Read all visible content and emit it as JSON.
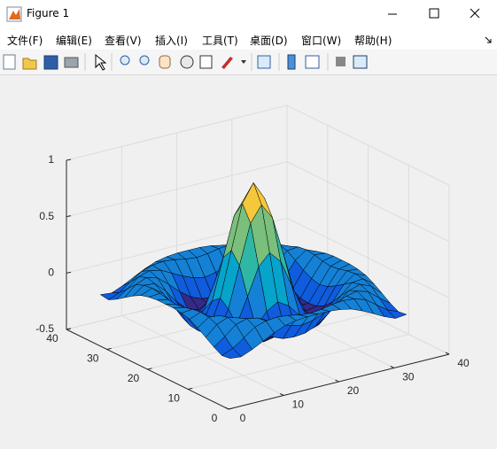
{
  "window": {
    "title": "Figure 1"
  },
  "menu": [
    "文件(F)",
    "编辑(E)",
    "查看(V)",
    "插入(I)",
    "工具(T)",
    "桌面(D)",
    "窗口(W)",
    "帮助(H)"
  ],
  "chart_data": {
    "type": "surface",
    "x": [
      1,
      3,
      5,
      7,
      9,
      11,
      13,
      15,
      17,
      19,
      21,
      23,
      25,
      27,
      29,
      31,
      33
    ],
    "y": [
      1,
      3,
      5,
      7,
      9,
      11,
      13,
      15,
      17,
      19,
      21,
      23,
      25,
      27,
      29,
      31,
      33
    ],
    "z": [
      [
        -0.08,
        -0.09,
        -0.05,
        0,
        0.05,
        0.09,
        0.11,
        0.12,
        0.12,
        0.12,
        0.11,
        0.09,
        0.05,
        0,
        -0.05,
        -0.09,
        -0.08
      ],
      [
        -0.09,
        -0.05,
        0.02,
        0.09,
        0.12,
        0.13,
        0.12,
        0.1,
        0.09,
        0.1,
        0.12,
        0.13,
        0.12,
        0.09,
        0.02,
        -0.05,
        -0.09
      ],
      [
        -0.05,
        0.02,
        0.1,
        0.13,
        0.11,
        0.06,
        0.01,
        -0.03,
        -0.05,
        -0.03,
        0.01,
        0.06,
        0.11,
        0.13,
        0.1,
        0.02,
        -0.05
      ],
      [
        0,
        0.09,
        0.13,
        0.1,
        0.02,
        -0.07,
        -0.14,
        -0.18,
        -0.19,
        -0.18,
        -0.14,
        -0.07,
        0.02,
        0.1,
        0.13,
        0.09,
        0
      ],
      [
        0.05,
        0.12,
        0.11,
        0.02,
        -0.1,
        -0.19,
        -0.22,
        -0.2,
        -0.19,
        -0.2,
        -0.22,
        -0.19,
        -0.1,
        0.02,
        0.11,
        0.12,
        0.05
      ],
      [
        0.09,
        0.13,
        0.06,
        -0.07,
        -0.19,
        -0.21,
        -0.12,
        -0.01,
        0.05,
        -0.01,
        -0.12,
        -0.21,
        -0.19,
        -0.07,
        0.06,
        0.13,
        0.09
      ],
      [
        0.11,
        0.12,
        0.01,
        -0.14,
        -0.22,
        -0.12,
        0.11,
        0.35,
        0.45,
        0.35,
        0.11,
        -0.12,
        -0.22,
        -0.14,
        0.01,
        0.12,
        0.11
      ],
      [
        0.12,
        0.1,
        -0.03,
        -0.18,
        -0.2,
        -0.01,
        0.35,
        0.7,
        0.84,
        0.7,
        0.35,
        -0.01,
        -0.2,
        -0.18,
        -0.03,
        0.1,
        0.12
      ],
      [
        0.12,
        0.09,
        -0.05,
        -0.19,
        -0.19,
        0.05,
        0.45,
        0.84,
        1,
        0.84,
        0.45,
        0.05,
        -0.19,
        -0.19,
        -0.05,
        0.09,
        0.12
      ],
      [
        0.12,
        0.1,
        -0.03,
        -0.18,
        -0.2,
        -0.01,
        0.35,
        0.7,
        0.84,
        0.7,
        0.35,
        -0.01,
        -0.2,
        -0.18,
        -0.03,
        0.1,
        0.12
      ],
      [
        0.11,
        0.12,
        0.01,
        -0.14,
        -0.22,
        -0.12,
        0.11,
        0.35,
        0.45,
        0.35,
        0.11,
        -0.12,
        -0.22,
        -0.14,
        0.01,
        0.12,
        0.11
      ],
      [
        0.09,
        0.13,
        0.06,
        -0.07,
        -0.19,
        -0.21,
        -0.12,
        -0.01,
        0.05,
        -0.01,
        -0.12,
        -0.21,
        -0.19,
        -0.07,
        0.06,
        0.13,
        0.09
      ],
      [
        0.05,
        0.12,
        0.11,
        0.02,
        -0.1,
        -0.19,
        -0.22,
        -0.2,
        -0.19,
        -0.2,
        -0.22,
        -0.19,
        -0.1,
        0.02,
        0.11,
        0.12,
        0.05
      ],
      [
        0,
        0.09,
        0.13,
        0.1,
        0.02,
        -0.07,
        -0.14,
        -0.18,
        -0.19,
        -0.18,
        -0.14,
        -0.07,
        0.02,
        0.1,
        0.13,
        0.09,
        0
      ],
      [
        -0.05,
        0.02,
        0.1,
        0.13,
        0.11,
        0.06,
        0.01,
        -0.03,
        -0.05,
        -0.03,
        0.01,
        0.06,
        0.11,
        0.13,
        0.1,
        0.02,
        -0.05
      ],
      [
        -0.09,
        -0.05,
        0.02,
        0.09,
        0.12,
        0.13,
        0.12,
        0.1,
        0.09,
        0.1,
        0.12,
        0.13,
        0.12,
        0.09,
        0.02,
        -0.05,
        -0.09
      ],
      [
        -0.08,
        -0.09,
        -0.05,
        0,
        0.05,
        0.09,
        0.11,
        0.12,
        0.12,
        0.12,
        0.11,
        0.09,
        0.05,
        0,
        -0.05,
        -0.09,
        -0.08
      ]
    ],
    "xlim": [
      0,
      40
    ],
    "ylim": [
      0,
      40
    ],
    "zlim": [
      -0.5,
      1
    ],
    "xticks": [
      0,
      10,
      20,
      30,
      40
    ],
    "yticks": [
      0,
      10,
      20,
      30,
      40
    ],
    "zticks": [
      -0.5,
      0,
      0.5,
      1
    ],
    "grid": true,
    "colormap": [
      "#352a87",
      "#0f5cdd",
      "#1481d6",
      "#06a4ca",
      "#2eb7a4",
      "#7abf7c",
      "#c3bc5d",
      "#f5c73a",
      "#f9fb0e"
    ],
    "edge_color": "#000000"
  }
}
